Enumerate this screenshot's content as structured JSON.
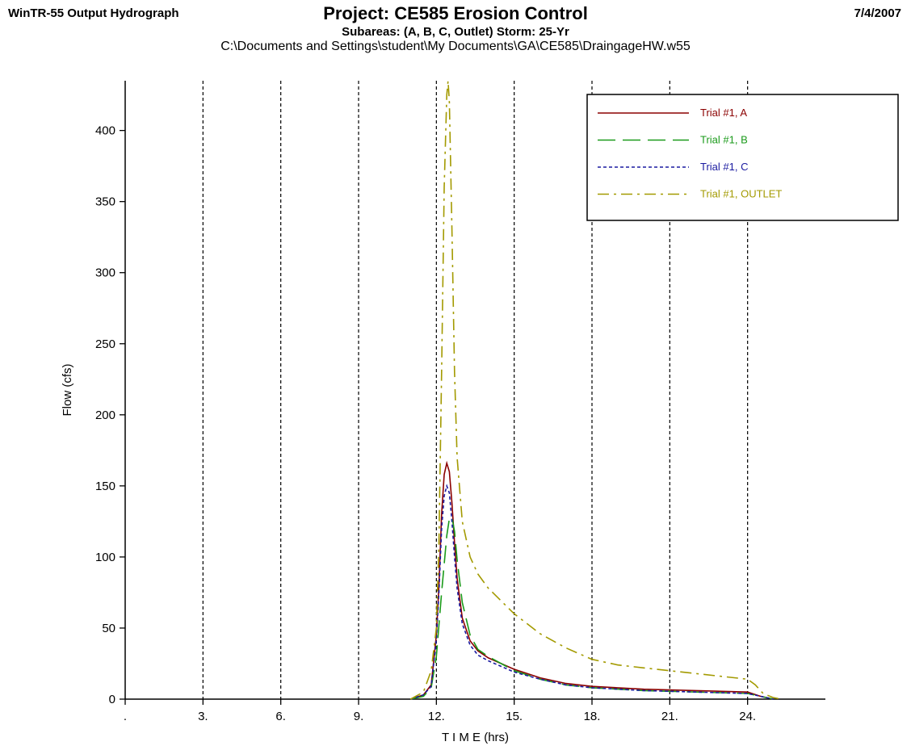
{
  "header": {
    "app_title": "WinTR-55 Output Hydrograph",
    "date": "7/4/2007",
    "project_title": "Project: CE585 Erosion Control",
    "subtitle": "Subareas: (A, B, C, Outlet)  Storm: 25-Yr",
    "file_path": "C:\\Documents and Settings\\student\\My Documents\\GA\\CE585\\DraingageHW.w55"
  },
  "chart_data": {
    "type": "line",
    "title": "Project: CE585 Erosion Control",
    "xlabel": "T I M E (hrs)",
    "ylabel": "Flow (cfs)",
    "xlim": [
      0,
      27
    ],
    "ylim": [
      0,
      435
    ],
    "x_ticks": [
      {
        "value": 0,
        "label": "."
      },
      {
        "value": 3,
        "label": "3."
      },
      {
        "value": 6,
        "label": "6."
      },
      {
        "value": 9,
        "label": "9."
      },
      {
        "value": 12,
        "label": "12."
      },
      {
        "value": 15,
        "label": "15."
      },
      {
        "value": 18,
        "label": "18."
      },
      {
        "value": 21,
        "label": "21."
      },
      {
        "value": 24,
        "label": "24."
      }
    ],
    "y_ticks": [
      0,
      50,
      100,
      150,
      200,
      250,
      300,
      350,
      400
    ],
    "vertical_gridlines": [
      3,
      6,
      9,
      12,
      15,
      18,
      21,
      24
    ],
    "grid_style": "dashed vertical",
    "legend_position": "top-right",
    "series": [
      {
        "name": "Trial #1, A",
        "color": "#8b0000",
        "dash": "solid",
        "x": [
          11.0,
          11.5,
          11.8,
          12.0,
          12.1,
          12.2,
          12.3,
          12.4,
          12.5,
          12.6,
          12.7,
          12.8,
          13.0,
          13.3,
          13.6,
          14.0,
          15.0,
          16.0,
          17.0,
          18.0,
          20.0,
          22.0,
          24.0,
          24.5,
          25.0
        ],
        "y": [
          0,
          3,
          10,
          45,
          80,
          130,
          158,
          166,
          160,
          138,
          110,
          85,
          57,
          41,
          34,
          29,
          21,
          15,
          11,
          9,
          7,
          6,
          5,
          2,
          0
        ]
      },
      {
        "name": "Trial #1, B",
        "color": "#1a9a1a",
        "dash": "long",
        "x": [
          11.0,
          11.5,
          11.8,
          12.0,
          12.2,
          12.4,
          12.5,
          12.6,
          12.7,
          12.8,
          13.0,
          13.3,
          13.6,
          14.0,
          15.0,
          16.0,
          17.0,
          18.0,
          20.0,
          22.0,
          24.0,
          24.5,
          25.0
        ],
        "y": [
          0,
          2,
          8,
          30,
          75,
          115,
          127,
          128,
          118,
          98,
          68,
          45,
          35,
          30,
          20,
          14,
          10,
          8,
          6,
          5,
          4,
          2,
          0
        ]
      },
      {
        "name": "Trial #1, C",
        "color": "#1a1aa0",
        "dash": "dotted",
        "x": [
          11.0,
          11.5,
          11.8,
          12.0,
          12.1,
          12.2,
          12.3,
          12.4,
          12.5,
          12.6,
          12.7,
          12.8,
          13.0,
          13.3,
          13.6,
          14.0,
          15.0,
          16.0,
          17.0,
          18.0,
          20.0,
          22.0,
          24.0,
          24.5,
          25.0
        ],
        "y": [
          0,
          3,
          9,
          42,
          75,
          120,
          143,
          150,
          145,
          125,
          100,
          78,
          53,
          38,
          31,
          27,
          19,
          14,
          10,
          8,
          6,
          5,
          4,
          2,
          0
        ]
      },
      {
        "name": "Trial #1, OUTLET",
        "color": "#a39a00",
        "dash": "dashdot",
        "x": [
          11.0,
          11.5,
          11.8,
          12.0,
          12.1,
          12.2,
          12.3,
          12.4,
          12.45,
          12.5,
          12.6,
          12.7,
          12.8,
          13.0,
          13.3,
          13.6,
          14.0,
          15.0,
          16.0,
          17.0,
          18.0,
          19.0,
          20.0,
          21.0,
          22.0,
          23.0,
          24.0,
          24.3,
          24.6,
          25.0,
          25.3
        ],
        "y": [
          0,
          5,
          20,
          50,
          110,
          230,
          360,
          425,
          435,
          420,
          330,
          230,
          170,
          125,
          100,
          88,
          78,
          60,
          46,
          36,
          28,
          24,
          22,
          20,
          18,
          16,
          14,
          10,
          4,
          1,
          0
        ]
      }
    ]
  }
}
